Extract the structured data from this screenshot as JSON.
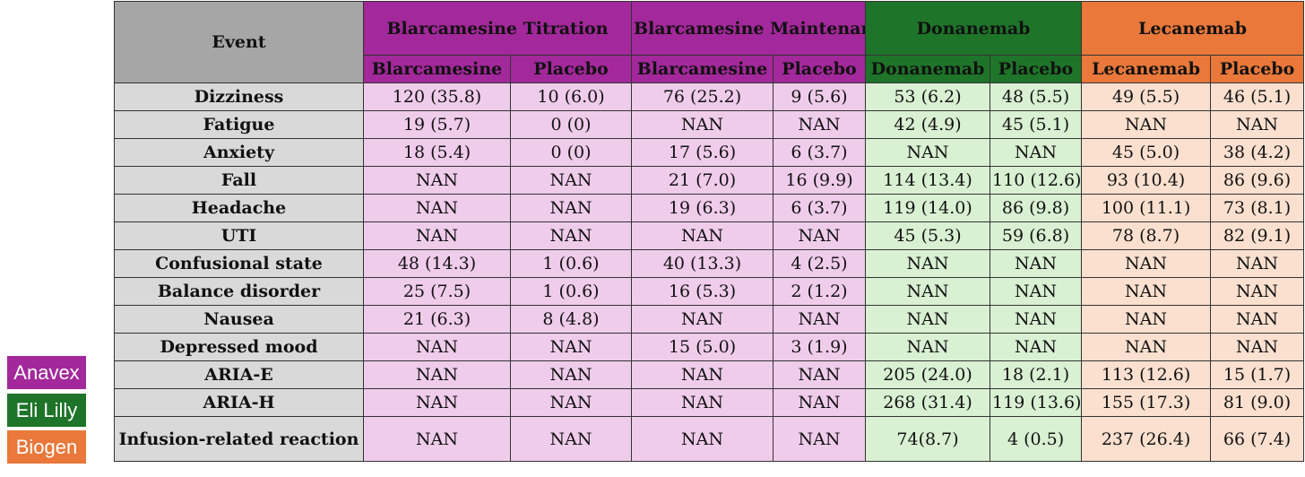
{
  "legend": [
    {
      "label": "Anavex",
      "color": "#a3289b"
    },
    {
      "label": "Eli Lilly",
      "color": "#1e7429"
    },
    {
      "label": "Biogen",
      "color": "#e9783a"
    }
  ],
  "table": {
    "event_header": "Event",
    "groups": [
      {
        "label": "Blarcamesine Titration",
        "company": "anavex"
      },
      {
        "label": "Blarcamesine Maintenance",
        "company": "anavex"
      },
      {
        "label": "Donanemab",
        "company": "lilly"
      },
      {
        "label": "Lecanemab",
        "company": "biogen"
      }
    ],
    "subheaders": [
      "Blarcamesine",
      "Placebo",
      "Blarcamesine",
      "Placebo",
      "Donanemab",
      "Placebo",
      "Lecanemab",
      "Placebo"
    ],
    "rows": [
      {
        "event": "Dizziness",
        "values": [
          "120 (35.8)",
          "10 (6.0)",
          "76 (25.2)",
          "9 (5.6)",
          "53 (6.2)",
          "48 (5.5)",
          "49 (5.5)",
          "46 (5.1)"
        ]
      },
      {
        "event": "Fatigue",
        "values": [
          "19 (5.7)",
          "0 (0)",
          "NAN",
          "NAN",
          "42 (4.9)",
          "45 (5.1)",
          "NAN",
          "NAN"
        ]
      },
      {
        "event": "Anxiety",
        "values": [
          "18 (5.4)",
          "0 (0)",
          "17 (5.6)",
          "6 (3.7)",
          "NAN",
          "NAN",
          "45 (5.0)",
          "38 (4.2)"
        ]
      },
      {
        "event": "Fall",
        "values": [
          "NAN",
          "NAN",
          "21 (7.0)",
          "16 (9.9)",
          "114 (13.4)",
          "110 (12.6)",
          "93 (10.4)",
          "86 (9.6)"
        ]
      },
      {
        "event": "Headache",
        "values": [
          "NAN",
          "NAN",
          "19 (6.3)",
          "6 (3.7)",
          "119 (14.0)",
          "86 (9.8)",
          "100 (11.1)",
          "73 (8.1)"
        ]
      },
      {
        "event": "UTI",
        "values": [
          "NAN",
          "NAN",
          "NAN",
          "NAN",
          "45 (5.3)",
          "59 (6.8)",
          "78 (8.7)",
          "82 (9.1)"
        ]
      },
      {
        "event": "Confusional state",
        "values": [
          "48 (14.3)",
          "1 (0.6)",
          "40 (13.3)",
          "4 (2.5)",
          "NAN",
          "NAN",
          "NAN",
          "NAN"
        ]
      },
      {
        "event": "Balance disorder",
        "values": [
          "25 (7.5)",
          "1 (0.6)",
          "16 (5.3)",
          "2 (1.2)",
          "NAN",
          "NAN",
          "NAN",
          "NAN"
        ]
      },
      {
        "event": "Nausea",
        "values": [
          "21 (6.3)",
          "8 (4.8)",
          "NAN",
          "NAN",
          "NAN",
          "NAN",
          "NAN",
          "NAN"
        ]
      },
      {
        "event": "Depressed mood",
        "values": [
          "NAN",
          "NAN",
          "15 (5.0)",
          "3 (1.9)",
          "NAN",
          "NAN",
          "NAN",
          "NAN"
        ]
      },
      {
        "event": "ARIA-E",
        "values": [
          "NAN",
          "NAN",
          "NAN",
          "NAN",
          "205 (24.0)",
          "18 (2.1)",
          "113 (12.6)",
          "15 (1.7)"
        ]
      },
      {
        "event": "ARIA-H",
        "values": [
          "NAN",
          "NAN",
          "NAN",
          "NAN",
          "268 (31.4)",
          "119 (13.6)",
          "155 (17.3)",
          "81 (9.0)"
        ]
      },
      {
        "event": "Infusion-related reaction",
        "values": [
          "NAN",
          "NAN",
          "NAN",
          "NAN",
          "74(8.7)",
          "4 (0.5)",
          "237 (26.4)",
          "66 (7.4)"
        ]
      }
    ]
  }
}
